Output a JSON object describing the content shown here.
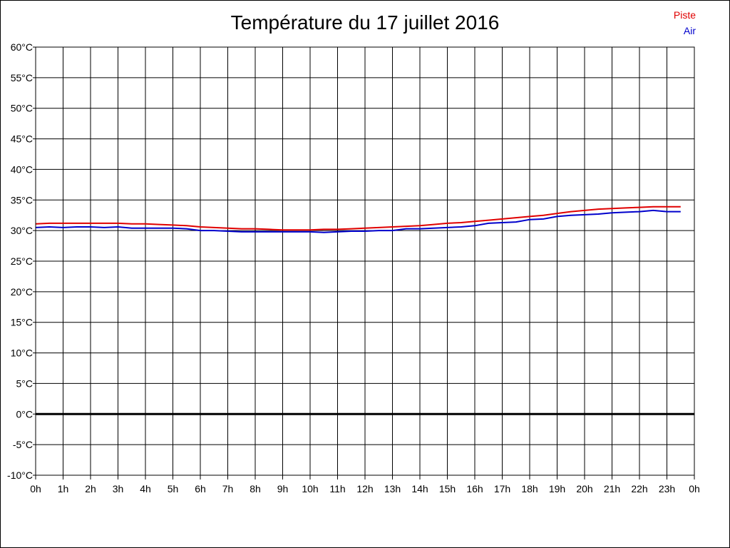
{
  "chart_data": {
    "type": "line",
    "title": "Température du 17 juillet 2016",
    "x_tick_labels": [
      "0h",
      "1h",
      "2h",
      "3h",
      "4h",
      "5h",
      "6h",
      "7h",
      "8h",
      "9h",
      "10h",
      "11h",
      "12h",
      "13h",
      "14h",
      "15h",
      "16h",
      "17h",
      "18h",
      "19h",
      "20h",
      "21h",
      "22h",
      "23h",
      "0h"
    ],
    "y_tick_labels": [
      "60°C",
      "55°C",
      "50°C",
      "45°C",
      "40°C",
      "35°C",
      "30°C",
      "25°C",
      "20°C",
      "15°C",
      "10°C",
      "5°C",
      "0°C",
      "-5°C",
      "-10°C"
    ],
    "xlim": [
      0,
      24
    ],
    "ylim": [
      -10,
      60
    ],
    "y_step": 5,
    "grid": true,
    "zero_line": true,
    "legend_position": "top-right",
    "x": [
      0,
      0.5,
      1,
      1.5,
      2,
      2.5,
      3,
      3.5,
      4,
      4.5,
      5,
      5.5,
      6,
      6.5,
      7,
      7.5,
      8,
      8.5,
      9,
      9.5,
      10,
      10.5,
      11,
      11.5,
      12,
      12.5,
      13,
      13.5,
      14,
      14.5,
      15,
      15.5,
      16,
      16.5,
      17,
      17.5,
      18,
      18.5,
      19,
      19.5,
      20,
      20.5,
      21,
      21.5,
      22,
      22.5,
      23,
      23.5
    ],
    "series": [
      {
        "name": "Piste",
        "color": "#e00000",
        "values": [
          31.1,
          31.2,
          31.2,
          31.2,
          31.2,
          31.2,
          31.2,
          31.1,
          31.1,
          31.0,
          30.9,
          30.8,
          30.6,
          30.5,
          30.4,
          30.3,
          30.3,
          30.2,
          30.1,
          30.1,
          30.1,
          30.2,
          30.2,
          30.3,
          30.4,
          30.5,
          30.6,
          30.7,
          30.8,
          31.0,
          31.2,
          31.3,
          31.5,
          31.7,
          31.9,
          32.1,
          32.3,
          32.5,
          32.8,
          33.1,
          33.3,
          33.5,
          33.6,
          33.7,
          33.8,
          33.9,
          33.9,
          33.9
        ]
      },
      {
        "name": "Air",
        "color": "#0000cc",
        "values": [
          30.5,
          30.6,
          30.5,
          30.6,
          30.6,
          30.5,
          30.6,
          30.4,
          30.4,
          30.4,
          30.4,
          30.3,
          30.0,
          30.0,
          29.9,
          29.8,
          29.8,
          29.8,
          29.8,
          29.8,
          29.8,
          29.7,
          29.8,
          29.9,
          29.9,
          30.0,
          30.0,
          30.3,
          30.3,
          30.4,
          30.5,
          30.6,
          30.8,
          31.2,
          31.3,
          31.4,
          31.8,
          31.9,
          32.3,
          32.5,
          32.6,
          32.7,
          32.9,
          33.0,
          33.1,
          33.3,
          33.1,
          33.1
        ]
      }
    ]
  }
}
